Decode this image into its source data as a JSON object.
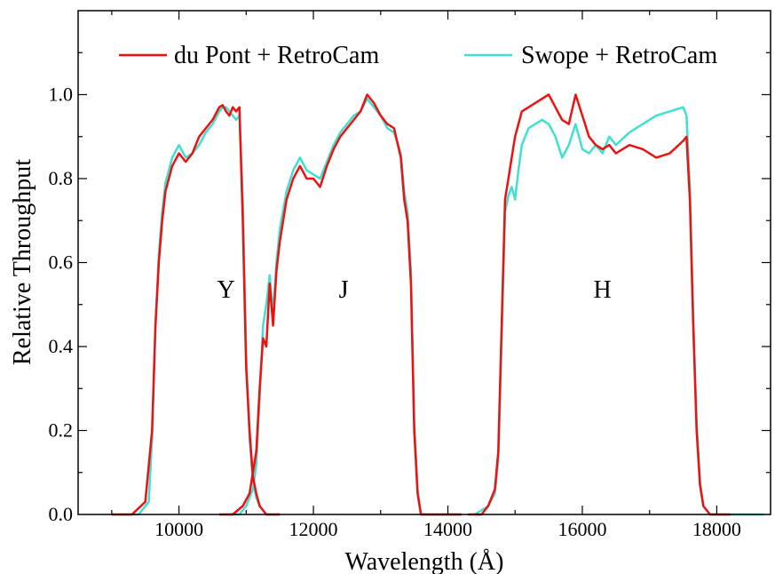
{
  "chart_data": {
    "type": "line",
    "xlabel": "Wavelength (Å)",
    "ylabel": "Relative Throughput",
    "xlim": [
      8500,
      18800
    ],
    "ylim": [
      0,
      1.2
    ],
    "x_ticks": [
      10000,
      12000,
      14000,
      16000,
      18000
    ],
    "x_tick_labels": [
      "10000",
      "12000",
      "14000",
      "16000",
      "18000"
    ],
    "y_ticks": [
      0,
      0.2,
      0.4,
      0.6,
      0.8,
      1.0
    ],
    "y_tick_labels": [
      "0.0",
      "0.2",
      "0.4",
      "0.6",
      "0.8",
      "1.0"
    ],
    "grid": false,
    "legend_position": "top",
    "annotations": [
      {
        "text": "Y",
        "x": 10700,
        "y": 0.5
      },
      {
        "text": "J",
        "x": 12450,
        "y": 0.5
      },
      {
        "text": "H",
        "x": 16300,
        "y": 0.5
      }
    ],
    "series": [
      {
        "name": "du Pont + RetroCam",
        "color": "#ee1111",
        "segments": [
          {
            "band": "Y",
            "x": [
              9000,
              9300,
              9500,
              9600,
              9650,
              9700,
              9750,
              9800,
              9900,
              10000,
              10100,
              10200,
              10300,
              10400,
              10500,
              10600,
              10650,
              10700,
              10750,
              10800,
              10850,
              10900,
              10950,
              11000,
              11050,
              11100,
              11150,
              11200,
              11300,
              11500
            ],
            "y": [
              0.0,
              0.0,
              0.03,
              0.2,
              0.45,
              0.6,
              0.7,
              0.77,
              0.83,
              0.86,
              0.84,
              0.86,
              0.9,
              0.92,
              0.94,
              0.97,
              0.975,
              0.96,
              0.95,
              0.97,
              0.96,
              0.97,
              0.7,
              0.35,
              0.2,
              0.09,
              0.05,
              0.02,
              0.0,
              0.0
            ]
          },
          {
            "band": "J",
            "x": [
              10600,
              10800,
              10950,
              11050,
              11100,
              11150,
              11200,
              11250,
              11300,
              11350,
              11400,
              11450,
              11500,
              11600,
              11700,
              11800,
              11900,
              12000,
              12100,
              12200,
              12300,
              12400,
              12500,
              12600,
              12700,
              12800,
              12900,
              13000,
              13100,
              13200,
              13300,
              13350,
              13400,
              13450,
              13500,
              13550,
              13600,
              13800,
              14000,
              14200
            ],
            "y": [
              0.0,
              0.0,
              0.02,
              0.05,
              0.1,
              0.15,
              0.3,
              0.42,
              0.4,
              0.55,
              0.45,
              0.58,
              0.65,
              0.75,
              0.8,
              0.83,
              0.8,
              0.8,
              0.78,
              0.83,
              0.87,
              0.9,
              0.92,
              0.94,
              0.96,
              1.0,
              0.98,
              0.95,
              0.93,
              0.92,
              0.85,
              0.75,
              0.7,
              0.55,
              0.2,
              0.05,
              0.0,
              0.0,
              0.0,
              0.0
            ]
          },
          {
            "band": "H",
            "x": [
              14300,
              14500,
              14600,
              14700,
              14750,
              14800,
              14850,
              14900,
              14950,
              15000,
              15050,
              15100,
              15200,
              15300,
              15400,
              15500,
              15600,
              15700,
              15800,
              15900,
              16000,
              16100,
              16200,
              16300,
              16400,
              16500,
              16700,
              16900,
              17100,
              17300,
              17500,
              17550,
              17600,
              17650,
              17700,
              17750,
              17800,
              17900,
              18000,
              18200
            ],
            "y": [
              0.0,
              0.0,
              0.02,
              0.06,
              0.15,
              0.45,
              0.75,
              0.8,
              0.85,
              0.9,
              0.93,
              0.96,
              0.97,
              0.98,
              0.99,
              1.0,
              0.97,
              0.94,
              0.93,
              1.0,
              0.95,
              0.9,
              0.88,
              0.87,
              0.88,
              0.86,
              0.88,
              0.87,
              0.85,
              0.86,
              0.89,
              0.9,
              0.75,
              0.45,
              0.2,
              0.07,
              0.02,
              0.0,
              0.0,
              0.0
            ]
          }
        ]
      },
      {
        "name": "Swope + RetroCam",
        "color": "#40e0d0",
        "segments": [
          {
            "band": "Y",
            "x": [
              9100,
              9400,
              9550,
              9600,
              9650,
              9700,
              9750,
              9800,
              9900,
              10000,
              10100,
              10200,
              10300,
              10400,
              10500,
              10600,
              10650,
              10700,
              10750,
              10800,
              10850,
              10900,
              10950,
              11000,
              11050,
              11100,
              11150,
              11200,
              11300,
              11500
            ],
            "y": [
              0.0,
              0.0,
              0.03,
              0.18,
              0.45,
              0.62,
              0.72,
              0.79,
              0.85,
              0.88,
              0.85,
              0.86,
              0.88,
              0.91,
              0.93,
              0.96,
              0.97,
              0.97,
              0.96,
              0.95,
              0.94,
              0.95,
              0.75,
              0.38,
              0.18,
              0.08,
              0.04,
              0.02,
              0.0,
              0.0
            ]
          },
          {
            "band": "J",
            "x": [
              10700,
              10900,
              11000,
              11100,
              11150,
              11200,
              11250,
              11300,
              11350,
              11400,
              11450,
              11500,
              11600,
              11700,
              11800,
              11900,
              12000,
              12100,
              12200,
              12300,
              12400,
              12500,
              12600,
              12700,
              12800,
              12900,
              13000,
              13100,
              13200,
              13300,
              13350,
              13400,
              13450,
              13500,
              13550,
              13600,
              13800,
              14000,
              14200
            ],
            "y": [
              0.0,
              0.0,
              0.02,
              0.06,
              0.12,
              0.28,
              0.45,
              0.5,
              0.57,
              0.48,
              0.6,
              0.68,
              0.77,
              0.82,
              0.85,
              0.82,
              0.81,
              0.8,
              0.84,
              0.88,
              0.91,
              0.93,
              0.95,
              0.96,
              0.99,
              0.97,
              0.95,
              0.92,
              0.91,
              0.86,
              0.77,
              0.72,
              0.58,
              0.22,
              0.06,
              0.0,
              0.0,
              0.0,
              0.0
            ]
          },
          {
            "band": "H",
            "x": [
              14400,
              14600,
              14700,
              14750,
              14800,
              14850,
              14900,
              14950,
              15000,
              15050,
              15100,
              15200,
              15300,
              15400,
              15500,
              15600,
              15700,
              15800,
              15900,
              16000,
              16100,
              16200,
              16300,
              16400,
              16500,
              16700,
              16900,
              17100,
              17300,
              17500,
              17550,
              17600,
              17650,
              17700,
              17750,
              17800,
              17900,
              18000,
              18400,
              18700
            ],
            "y": [
              0.0,
              0.02,
              0.05,
              0.13,
              0.42,
              0.72,
              0.76,
              0.78,
              0.75,
              0.82,
              0.88,
              0.92,
              0.93,
              0.94,
              0.93,
              0.9,
              0.85,
              0.88,
              0.93,
              0.87,
              0.86,
              0.88,
              0.86,
              0.9,
              0.88,
              0.91,
              0.93,
              0.95,
              0.96,
              0.97,
              0.95,
              0.78,
              0.47,
              0.22,
              0.08,
              0.02,
              0.0,
              0.0,
              0.0,
              0.0
            ]
          }
        ]
      }
    ]
  }
}
